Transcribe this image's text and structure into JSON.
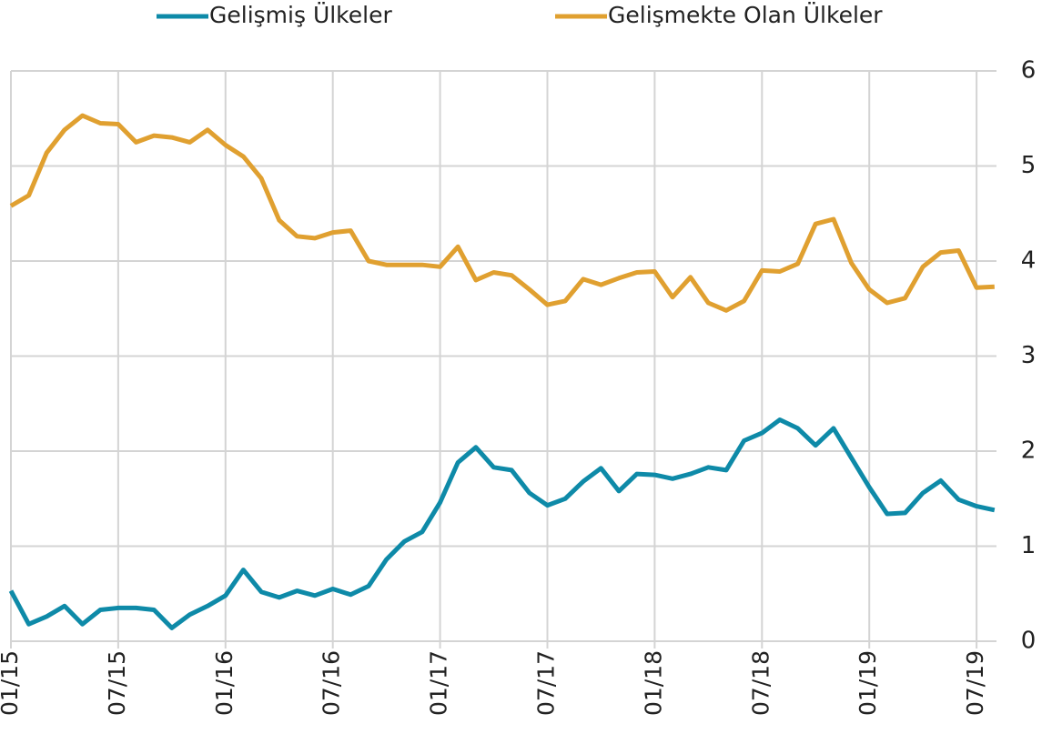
{
  "chart_data": {
    "type": "line",
    "categories": [
      "01/15",
      null,
      null,
      null,
      null,
      null,
      "07/15",
      null,
      null,
      null,
      null,
      null,
      "01/16",
      null,
      null,
      null,
      null,
      null,
      "07/16",
      null,
      null,
      null,
      null,
      null,
      "01/17",
      null,
      null,
      null,
      null,
      null,
      "07/17",
      null,
      null,
      null,
      null,
      null,
      "01/18",
      null,
      null,
      null,
      null,
      null,
      "07/18",
      null,
      null,
      null,
      null,
      null,
      "01/19",
      null,
      null,
      null,
      null,
      null,
      "07/19",
      null
    ],
    "series": [
      {
        "name": "Gelişmiş Ülkeler",
        "color": "#0e8aa8",
        "values": [
          0.53,
          0.18,
          0.26,
          0.37,
          0.18,
          0.33,
          0.35,
          0.35,
          0.33,
          0.14,
          0.28,
          0.37,
          0.48,
          0.75,
          0.52,
          0.46,
          0.53,
          0.48,
          0.55,
          0.49,
          0.58,
          0.86,
          1.05,
          1.15,
          1.46,
          1.88,
          2.04,
          1.83,
          1.8,
          1.56,
          1.43,
          1.5,
          1.68,
          1.82,
          1.58,
          1.76,
          1.75,
          1.71,
          1.76,
          1.83,
          1.8,
          2.11,
          2.19,
          2.33,
          2.24,
          2.06,
          2.24,
          1.93,
          1.62,
          1.34,
          1.35,
          1.56,
          1.69,
          1.49,
          1.42,
          1.38
        ]
      },
      {
        "name": "Gelişmekte Olan Ülkeler",
        "color": "#e0a030",
        "values": [
          4.58,
          4.69,
          5.14,
          5.38,
          5.53,
          5.45,
          5.44,
          5.25,
          5.32,
          5.3,
          5.25,
          5.38,
          5.22,
          5.1,
          4.87,
          4.43,
          4.26,
          4.24,
          4.3,
          4.32,
          4.0,
          3.96,
          3.96,
          3.96,
          3.94,
          4.15,
          3.8,
          3.88,
          3.85,
          3.7,
          3.54,
          3.58,
          3.81,
          3.75,
          3.82,
          3.88,
          3.89,
          3.62,
          3.83,
          3.56,
          3.48,
          3.58,
          3.9,
          3.89,
          3.97,
          4.39,
          4.44,
          3.98,
          3.7,
          3.56,
          3.61,
          3.94,
          4.09,
          4.11,
          3.72,
          3.73
        ]
      }
    ],
    "ylim": [
      0,
      6
    ],
    "yticks": [
      0,
      1,
      2,
      3,
      4,
      5,
      6
    ],
    "grid": true
  }
}
